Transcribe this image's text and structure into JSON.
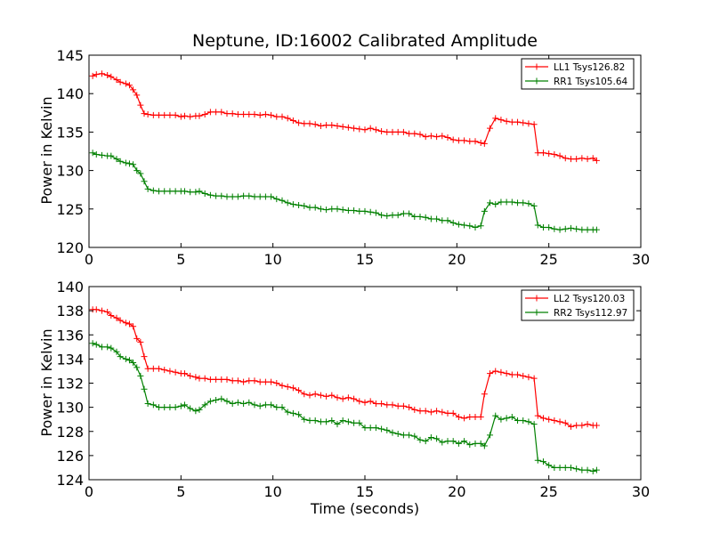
{
  "chart_data": [
    {
      "type": "line",
      "title": "Neptune, ID:16002 Calibrated Amplitude",
      "xlabel": "",
      "ylabel": "Power in Kelvin",
      "xlim": [
        0,
        30
      ],
      "ylim": [
        120,
        145
      ],
      "x_ticks": [
        0,
        5,
        10,
        15,
        20,
        25,
        30
      ],
      "y_ticks": [
        120,
        125,
        130,
        135,
        140,
        145
      ],
      "grid": false,
      "legend_position": "top-right",
      "series": [
        {
          "name": "LL1 Tsys126.82",
          "color": "#ff0000",
          "marker": "plus",
          "x": [
            0.2,
            0.4,
            0.7,
            1.0,
            1.2,
            1.5,
            1.7,
            2.0,
            2.2,
            2.4,
            2.6,
            2.8,
            3.0,
            3.2,
            3.5,
            3.8,
            4.1,
            4.4,
            4.7,
            5.0,
            5.2,
            5.5,
            5.8,
            6.0,
            6.3,
            6.6,
            6.9,
            7.2,
            7.5,
            7.8,
            8.1,
            8.4,
            8.7,
            9.0,
            9.3,
            9.6,
            9.9,
            10.2,
            10.5,
            10.8,
            11.1,
            11.4,
            11.7,
            12.0,
            12.3,
            12.6,
            12.9,
            13.2,
            13.5,
            13.8,
            14.1,
            14.4,
            14.7,
            15.0,
            15.3,
            15.6,
            15.9,
            16.2,
            16.5,
            16.8,
            17.1,
            17.4,
            17.7,
            18.0,
            18.3,
            18.6,
            18.9,
            19.2,
            19.5,
            19.8,
            20.1,
            20.4,
            20.7,
            21.0,
            21.3,
            21.5,
            21.8,
            22.1,
            22.4,
            22.7,
            23.0,
            23.3,
            23.6,
            23.9,
            24.2,
            24.4,
            24.7,
            25.0,
            25.3,
            25.6,
            25.9,
            26.2,
            26.5,
            26.8,
            27.1,
            27.4,
            27.6
          ],
          "values": [
            142.3,
            142.5,
            142.6,
            142.4,
            142.2,
            141.8,
            141.5,
            141.3,
            141.1,
            140.5,
            139.8,
            138.5,
            137.4,
            137.3,
            137.2,
            137.2,
            137.2,
            137.2,
            137.2,
            137.0,
            137.1,
            137.0,
            137.1,
            137.1,
            137.3,
            137.6,
            137.6,
            137.6,
            137.4,
            137.4,
            137.3,
            137.3,
            137.3,
            137.3,
            137.2,
            137.3,
            137.2,
            137.0,
            137.0,
            136.8,
            136.5,
            136.2,
            136.1,
            136.1,
            136.0,
            135.8,
            135.9,
            135.9,
            135.8,
            135.7,
            135.6,
            135.5,
            135.4,
            135.3,
            135.5,
            135.3,
            135.1,
            135.0,
            135.0,
            135.0,
            135.0,
            134.8,
            134.8,
            134.7,
            134.4,
            134.5,
            134.4,
            134.5,
            134.3,
            134.0,
            133.9,
            133.9,
            133.8,
            133.8,
            133.6,
            133.5,
            135.5,
            136.8,
            136.6,
            136.4,
            136.3,
            136.3,
            136.2,
            136.1,
            136.0,
            132.3,
            132.3,
            132.2,
            132.1,
            131.9,
            131.6,
            131.5,
            131.5,
            131.6,
            131.5,
            131.6,
            131.3
          ]
        },
        {
          "name": "RR1 Tsys105.64",
          "color": "#008000",
          "marker": "plus",
          "x": [
            0.2,
            0.4,
            0.7,
            1.0,
            1.2,
            1.5,
            1.7,
            2.0,
            2.2,
            2.4,
            2.6,
            2.8,
            3.0,
            3.2,
            3.5,
            3.8,
            4.1,
            4.4,
            4.7,
            5.0,
            5.2,
            5.5,
            5.8,
            6.0,
            6.3,
            6.6,
            6.9,
            7.2,
            7.5,
            7.8,
            8.1,
            8.4,
            8.7,
            9.0,
            9.3,
            9.6,
            9.9,
            10.2,
            10.5,
            10.8,
            11.1,
            11.4,
            11.7,
            12.0,
            12.3,
            12.6,
            12.9,
            13.2,
            13.5,
            13.8,
            14.1,
            14.4,
            14.7,
            15.0,
            15.3,
            15.6,
            15.9,
            16.2,
            16.5,
            16.8,
            17.1,
            17.4,
            17.7,
            18.0,
            18.3,
            18.6,
            18.9,
            19.2,
            19.5,
            19.8,
            20.1,
            20.4,
            20.7,
            21.0,
            21.3,
            21.5,
            21.8,
            22.1,
            22.4,
            22.7,
            23.0,
            23.3,
            23.6,
            23.9,
            24.2,
            24.4,
            24.7,
            25.0,
            25.3,
            25.6,
            25.9,
            26.2,
            26.5,
            26.8,
            27.1,
            27.4,
            27.6
          ],
          "values": [
            132.3,
            132.1,
            132.0,
            131.9,
            131.9,
            131.5,
            131.2,
            131.0,
            130.9,
            130.8,
            130.0,
            129.6,
            128.6,
            127.6,
            127.4,
            127.3,
            127.3,
            127.3,
            127.3,
            127.3,
            127.3,
            127.2,
            127.2,
            127.3,
            127.0,
            126.8,
            126.7,
            126.7,
            126.6,
            126.6,
            126.6,
            126.7,
            126.7,
            126.6,
            126.6,
            126.6,
            126.6,
            126.3,
            126.1,
            125.8,
            125.6,
            125.5,
            125.4,
            125.2,
            125.2,
            125.0,
            124.9,
            125.0,
            125.0,
            124.9,
            124.8,
            124.8,
            124.7,
            124.7,
            124.6,
            124.5,
            124.2,
            124.1,
            124.2,
            124.2,
            124.4,
            124.4,
            124.0,
            124.0,
            123.9,
            123.7,
            123.7,
            123.5,
            123.5,
            123.2,
            123.0,
            122.9,
            122.8,
            122.6,
            122.8,
            124.7,
            125.8,
            125.6,
            125.9,
            125.9,
            125.9,
            125.8,
            125.8,
            125.7,
            125.4,
            122.9,
            122.6,
            122.6,
            122.4,
            122.3,
            122.4,
            122.5,
            122.4,
            122.3,
            122.3,
            122.3,
            122.3
          ]
        }
      ]
    },
    {
      "type": "line",
      "title": "",
      "xlabel": "Time (seconds)",
      "ylabel": "Power in Kelvin",
      "xlim": [
        0,
        30
      ],
      "ylim": [
        124,
        140
      ],
      "x_ticks": [
        0,
        5,
        10,
        15,
        20,
        25,
        30
      ],
      "y_ticks": [
        124,
        126,
        128,
        130,
        132,
        134,
        136,
        138,
        140
      ],
      "grid": false,
      "legend_position": "top-right",
      "series": [
        {
          "name": "LL2 Tsys120.03",
          "color": "#ff0000",
          "marker": "plus",
          "x": [
            0.2,
            0.4,
            0.7,
            1.0,
            1.2,
            1.5,
            1.7,
            2.0,
            2.2,
            2.4,
            2.6,
            2.8,
            3.0,
            3.2,
            3.5,
            3.8,
            4.1,
            4.4,
            4.7,
            5.0,
            5.2,
            5.5,
            5.8,
            6.0,
            6.3,
            6.6,
            6.9,
            7.2,
            7.5,
            7.8,
            8.1,
            8.4,
            8.7,
            9.0,
            9.3,
            9.6,
            9.9,
            10.2,
            10.5,
            10.8,
            11.1,
            11.4,
            11.7,
            12.0,
            12.3,
            12.6,
            12.9,
            13.2,
            13.5,
            13.8,
            14.1,
            14.4,
            14.7,
            15.0,
            15.3,
            15.6,
            15.9,
            16.2,
            16.5,
            16.8,
            17.1,
            17.4,
            17.7,
            18.0,
            18.3,
            18.6,
            18.9,
            19.2,
            19.5,
            19.8,
            20.1,
            20.4,
            20.7,
            21.0,
            21.3,
            21.5,
            21.8,
            22.1,
            22.4,
            22.7,
            23.0,
            23.3,
            23.6,
            23.9,
            24.2,
            24.4,
            24.7,
            25.0,
            25.3,
            25.6,
            25.9,
            26.2,
            26.5,
            26.8,
            27.1,
            27.4,
            27.6
          ],
          "values": [
            138.1,
            138.1,
            138.0,
            137.9,
            137.6,
            137.4,
            137.2,
            137.0,
            136.9,
            136.7,
            135.7,
            135.4,
            134.2,
            133.2,
            133.2,
            133.2,
            133.1,
            133.0,
            132.9,
            132.8,
            132.8,
            132.6,
            132.5,
            132.4,
            132.4,
            132.3,
            132.3,
            132.3,
            132.3,
            132.2,
            132.2,
            132.1,
            132.2,
            132.2,
            132.1,
            132.1,
            132.1,
            132.0,
            131.8,
            131.7,
            131.6,
            131.4,
            131.1,
            131.0,
            131.1,
            131.0,
            130.9,
            131.0,
            130.8,
            130.7,
            130.8,
            130.7,
            130.5,
            130.4,
            130.5,
            130.3,
            130.3,
            130.2,
            130.2,
            130.1,
            130.1,
            130.0,
            129.8,
            129.7,
            129.7,
            129.6,
            129.7,
            129.6,
            129.5,
            129.5,
            129.2,
            129.1,
            129.2,
            129.2,
            129.2,
            131.1,
            132.8,
            133.0,
            132.9,
            132.8,
            132.7,
            132.7,
            132.6,
            132.5,
            132.4,
            129.3,
            129.1,
            129.0,
            128.9,
            128.8,
            128.7,
            128.4,
            128.5,
            128.5,
            128.6,
            128.5,
            128.5
          ]
        },
        {
          "name": "RR2 Tsys112.97",
          "color": "#008000",
          "marker": "plus",
          "x": [
            0.2,
            0.4,
            0.7,
            1.0,
            1.2,
            1.5,
            1.7,
            2.0,
            2.2,
            2.4,
            2.6,
            2.8,
            3.0,
            3.2,
            3.5,
            3.8,
            4.1,
            4.4,
            4.7,
            5.0,
            5.2,
            5.5,
            5.8,
            6.0,
            6.3,
            6.6,
            6.9,
            7.2,
            7.5,
            7.8,
            8.1,
            8.4,
            8.7,
            9.0,
            9.3,
            9.6,
            9.9,
            10.2,
            10.5,
            10.8,
            11.1,
            11.4,
            11.7,
            12.0,
            12.3,
            12.6,
            12.9,
            13.2,
            13.5,
            13.8,
            14.1,
            14.4,
            14.7,
            15.0,
            15.3,
            15.6,
            15.9,
            16.2,
            16.5,
            16.8,
            17.1,
            17.4,
            17.7,
            18.0,
            18.3,
            18.6,
            18.9,
            19.2,
            19.5,
            19.8,
            20.1,
            20.4,
            20.7,
            21.0,
            21.3,
            21.5,
            21.8,
            22.1,
            22.4,
            22.7,
            23.0,
            23.3,
            23.6,
            23.9,
            24.2,
            24.4,
            24.7,
            25.0,
            25.3,
            25.6,
            25.9,
            26.2,
            26.5,
            26.8,
            27.1,
            27.4,
            27.6
          ],
          "values": [
            135.3,
            135.2,
            135.0,
            135.0,
            134.9,
            134.6,
            134.2,
            134.0,
            133.9,
            133.7,
            133.3,
            132.6,
            131.5,
            130.3,
            130.2,
            130.0,
            130.0,
            130.0,
            130.0,
            130.1,
            130.2,
            129.9,
            129.7,
            129.8,
            130.2,
            130.5,
            130.6,
            130.7,
            130.5,
            130.3,
            130.4,
            130.3,
            130.4,
            130.2,
            130.1,
            130.2,
            130.2,
            130.0,
            130.0,
            129.6,
            129.5,
            129.4,
            129.0,
            128.9,
            128.9,
            128.8,
            128.8,
            128.9,
            128.6,
            128.9,
            128.8,
            128.7,
            128.7,
            128.3,
            128.3,
            128.3,
            128.2,
            128.1,
            127.9,
            127.8,
            127.7,
            127.7,
            127.6,
            127.3,
            127.2,
            127.5,
            127.4,
            127.1,
            127.2,
            127.2,
            127.0,
            127.2,
            126.9,
            127.0,
            127.0,
            126.8,
            127.7,
            129.3,
            129.0,
            129.1,
            129.2,
            128.9,
            128.9,
            128.8,
            128.6,
            125.6,
            125.5,
            125.2,
            125.0,
            125.0,
            125.0,
            125.0,
            124.9,
            124.8,
            124.8,
            124.7,
            124.8
          ]
        }
      ]
    }
  ]
}
